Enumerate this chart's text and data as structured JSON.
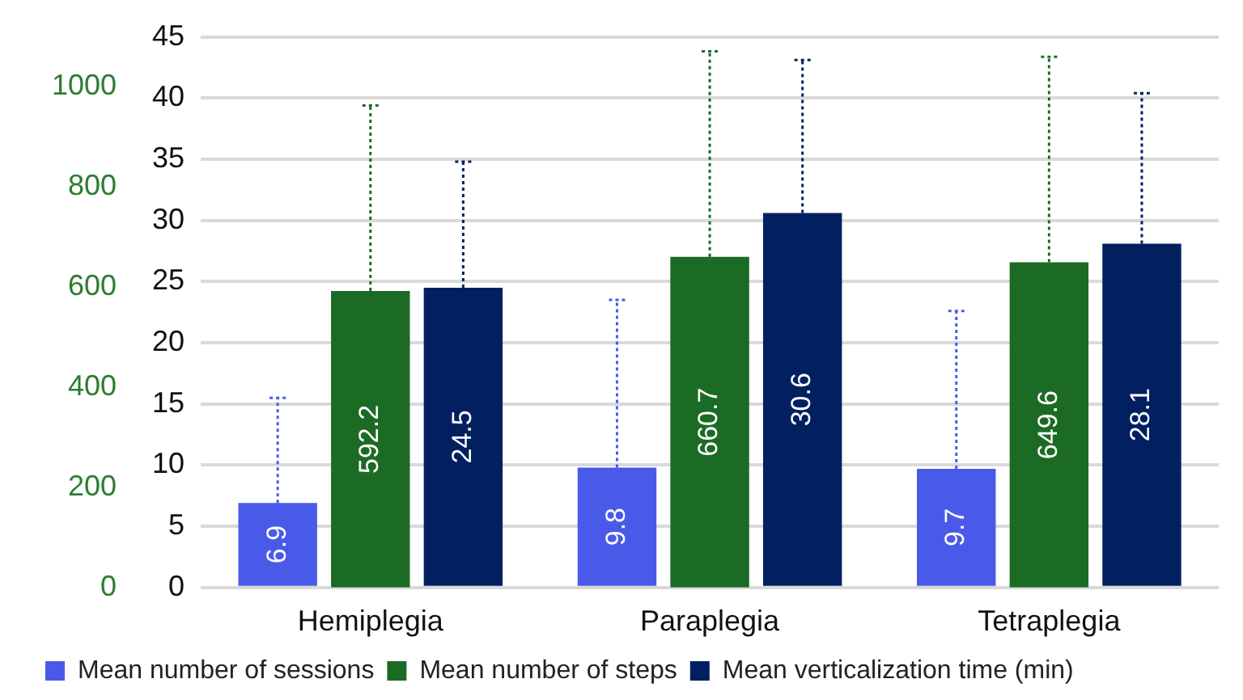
{
  "chart_data": {
    "type": "bar",
    "categories": [
      "Hemiplegia",
      "Paraplegia",
      "Tetraplegia"
    ],
    "series": [
      {
        "name": "Mean number of sessions",
        "color": "#4a5ae8",
        "values": [
          6.9,
          9.8,
          9.7
        ],
        "errors": [
          [
            6.9,
            15.5
          ],
          [
            9.8,
            23.5
          ],
          [
            9.7,
            22.6
          ]
        ]
      },
      {
        "name": "Mean number of steps",
        "color": "#1b6b25",
        "axis": "y2",
        "values": [
          592.2,
          660.7,
          649.6
        ],
        "errors": [
          [
            592.2,
            963
          ],
          [
            660.7,
            1071
          ],
          [
            649.6,
            1060
          ]
        ]
      },
      {
        "name": "Mean verticalization time (min)",
        "color": "#022060",
        "values": [
          24.5,
          30.6,
          28.1
        ],
        "errors": [
          [
            24.5,
            34.8
          ],
          [
            30.6,
            43.1
          ],
          [
            28.1,
            40.4
          ]
        ]
      }
    ],
    "ylim": [
      0,
      45
    ],
    "yticks": [
      0,
      5,
      10,
      15,
      20,
      25,
      30,
      35,
      40,
      45
    ],
    "y2lim": [
      0,
      1100
    ],
    "y2ticks": [
      0,
      200,
      400,
      600,
      800,
      1000
    ],
    "grid": "y",
    "legend": "bottom",
    "data_labels": true
  }
}
